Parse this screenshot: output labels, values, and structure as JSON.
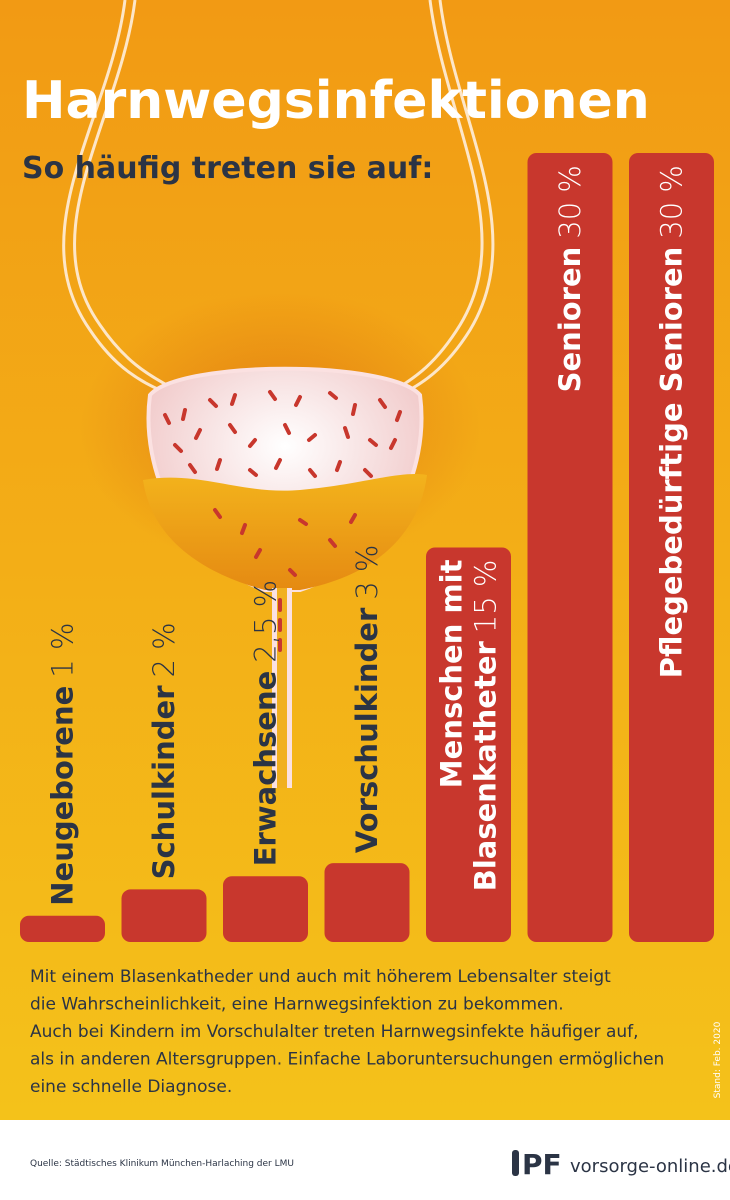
{
  "chart_data": {
    "type": "bar",
    "title": "Harnwegsinfektionen",
    "subtitle": "So häufig treten sie auf:",
    "categories": [
      "Neugeborene",
      "Schulkinder",
      "Erwachsene",
      "Vorschulkinder",
      "Menschen mit Blasenkatheter",
      "Senioren",
      "Pflegebedürftige Senioren"
    ],
    "values": [
      1,
      2,
      2.5,
      3,
      15,
      30,
      30
    ],
    "value_labels": [
      "1 %",
      "2 %",
      "2,5 %",
      "3 %",
      "15 %",
      "30 %",
      "30 %"
    ],
    "color": "#c8372d"
  },
  "description": [
    "Mit einem Blasenkatheder und auch mit höherem Lebensalter steigt",
    "die Wahrscheinlichkeit, eine Harnwegsinfektion zu bekommen.",
    "Auch bei Kindern im Vorschulalter treten Harnwegsinfekte häufiger auf,",
    "als in anderen Altersgruppen. Einfache Laboruntersuchungen ermöglichen",
    "eine schnelle Diagnose."
  ],
  "date_note": "Stand: Feb. 2020",
  "footer": {
    "source": "Quelle: Städtisches Klinikum München-Harlaching der LMU",
    "logo": "PF",
    "website": "vorsorge-online.de"
  }
}
